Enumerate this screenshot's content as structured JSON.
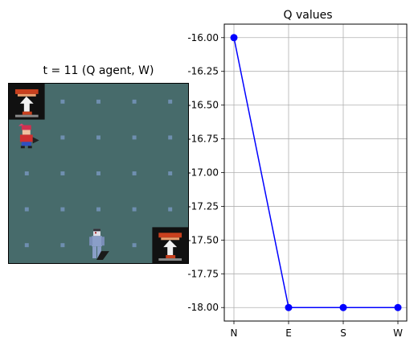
{
  "left_panel": {
    "title": "t = 11 (Q agent, W)",
    "grid": {
      "cols": 5,
      "rows": 5,
      "floor_color": "#476b6b",
      "dot_color": "#6f8fb0",
      "entities": [
        {
          "name": "trophy-stand",
          "col": 0,
          "row": 0
        },
        {
          "name": "player-character",
          "col": 0,
          "row": 1
        },
        {
          "name": "enemy-figure",
          "col": 2,
          "row": 4
        },
        {
          "name": "trophy-stand",
          "col": 4,
          "row": 4
        }
      ]
    }
  },
  "chart_data": {
    "type": "line",
    "title": "Q values",
    "categories": [
      "N",
      "E",
      "S",
      "W"
    ],
    "values": [
      -16.0,
      -18.0,
      -18.0,
      -18.0
    ],
    "ylim": [
      -18.1,
      -15.9
    ],
    "yticks": [
      "-16.00",
      "-16.25",
      "-16.50",
      "-16.75",
      "-17.00",
      "-17.25",
      "-17.50",
      "-17.75",
      "-18.00"
    ],
    "yticks_values": [
      -16.0,
      -16.25,
      -16.5,
      -16.75,
      -17.0,
      -17.25,
      -17.5,
      -17.75,
      -18.0
    ],
    "grid": true,
    "line_color": "#0000ff",
    "marker_color": "#0000ff"
  }
}
